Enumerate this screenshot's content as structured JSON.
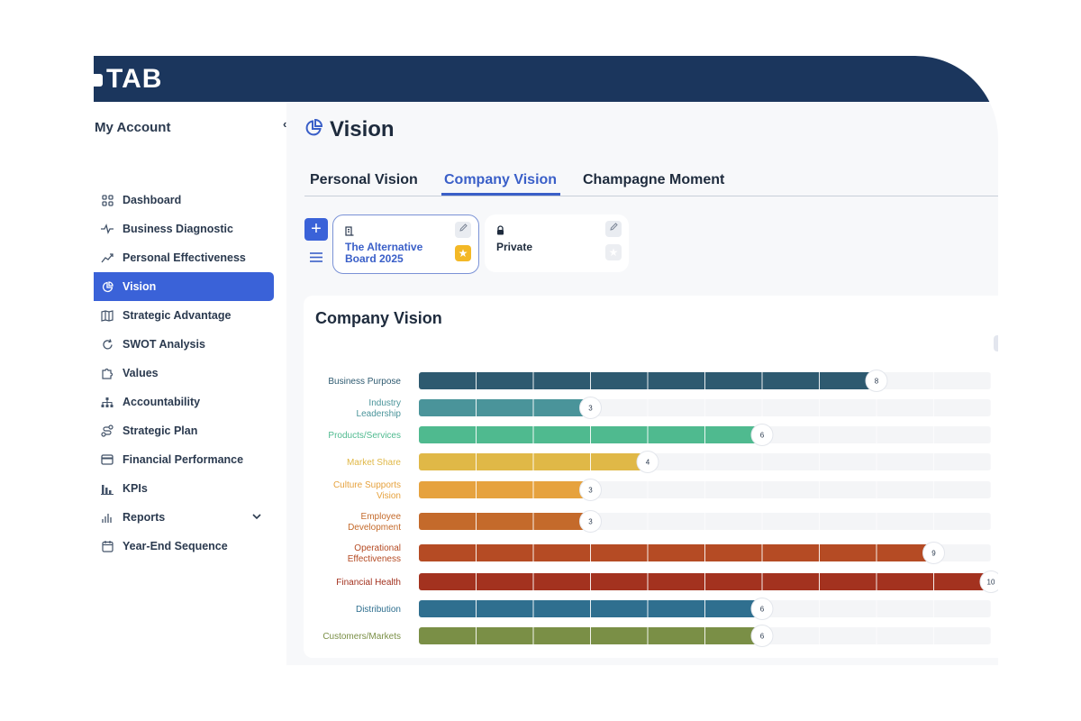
{
  "app": {
    "logo_text": "TAB"
  },
  "sidebar": {
    "title": "My Account",
    "items": [
      {
        "label": "Dashboard",
        "icon": "grid-icon"
      },
      {
        "label": "Business Diagnostic",
        "icon": "pulse-icon"
      },
      {
        "label": "Personal Effectiveness",
        "icon": "trend-icon"
      },
      {
        "label": "Vision",
        "icon": "pie-icon",
        "active": true
      },
      {
        "label": "Strategic Advantage",
        "icon": "map-icon"
      },
      {
        "label": "SWOT Analysis",
        "icon": "refresh-icon"
      },
      {
        "label": "Values",
        "icon": "puzzle-icon"
      },
      {
        "label": "Accountability",
        "icon": "org-chart-icon"
      },
      {
        "label": "Strategic Plan",
        "icon": "route-icon"
      },
      {
        "label": "Financial Performance",
        "icon": "card-icon"
      },
      {
        "label": "KPIs",
        "icon": "bar-chart-icon"
      },
      {
        "label": "Reports",
        "icon": "report-icon",
        "has_children": true
      },
      {
        "label": "Year-End Sequence",
        "icon": "calendar-icon"
      }
    ]
  },
  "main": {
    "title": "Vision",
    "tabs": [
      {
        "label": "Personal Vision"
      },
      {
        "label": "Company Vision",
        "active": true
      },
      {
        "label": "Champagne Moment"
      }
    ],
    "cards": [
      {
        "title": "The Alternative Board 2025",
        "icon": "building-icon",
        "starred": true,
        "selected": true
      },
      {
        "title": "Private",
        "icon": "lock-icon",
        "starred": false,
        "selected": false
      }
    ]
  },
  "chart_data": {
    "type": "bar",
    "orientation": "horizontal",
    "title": "Company Vision",
    "xlim": [
      0,
      10
    ],
    "grid": true,
    "categories": [
      "Business Purpose",
      "Industry Leadership",
      "Products/Services",
      "Market Share",
      "Culture Supports Vision",
      "Employee Development",
      "Operational Effectiveness",
      "Financial Health",
      "Distribution",
      "Customers/Markets"
    ],
    "values": [
      8,
      3,
      6,
      4,
      3,
      3,
      9,
      10,
      6,
      6
    ],
    "colors": [
      "#2e5a70",
      "#4a949a",
      "#4fba8f",
      "#e0b847",
      "#e6a23e",
      "#c46a2b",
      "#b54b24",
      "#a3321f",
      "#2f6f8f",
      "#7a8f46"
    ]
  }
}
